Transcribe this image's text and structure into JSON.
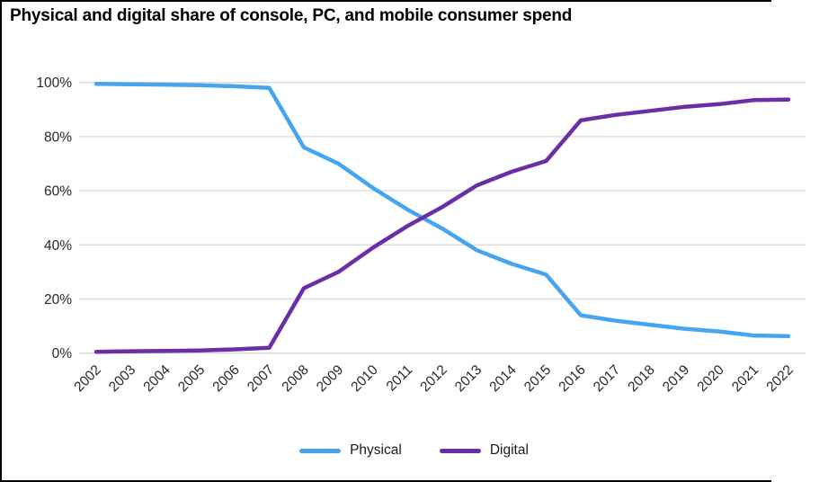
{
  "chart_data": {
    "type": "line",
    "title": "Physical and digital share of console, PC, and mobile consumer spend",
    "x": [
      2002,
      2003,
      2004,
      2005,
      2006,
      2007,
      2008,
      2009,
      2010,
      2011,
      2012,
      2013,
      2014,
      2015,
      2016,
      2017,
      2018,
      2019,
      2020,
      2021,
      2022
    ],
    "series": [
      {
        "name": "Physical",
        "color": "#46A5EE",
        "values": [
          99.5,
          99.3,
          99.2,
          99.0,
          98.6,
          98.0,
          76,
          70,
          61,
          53,
          46,
          38,
          33,
          29,
          14,
          12,
          10.5,
          9,
          8,
          6.5,
          6.3
        ]
      },
      {
        "name": "Digital",
        "color": "#6A2FA5",
        "values": [
          0.5,
          0.7,
          0.8,
          1.0,
          1.4,
          2.0,
          24,
          30,
          39,
          47,
          54,
          62,
          67,
          71,
          86,
          88,
          89.5,
          91,
          92,
          93.5,
          93.7
        ]
      }
    ],
    "xlabel": "",
    "ylabel": "",
    "ylim": [
      0,
      100
    ],
    "yticks": [
      "0%",
      "20%",
      "40%",
      "60%",
      "80%",
      "100%"
    ],
    "grid": true,
    "legend_position": "bottom"
  },
  "style": {
    "grid_color": "#D9D9D9",
    "axis_text_color": "#262626",
    "border_color": "#000000",
    "background": "#FFFFFF"
  }
}
